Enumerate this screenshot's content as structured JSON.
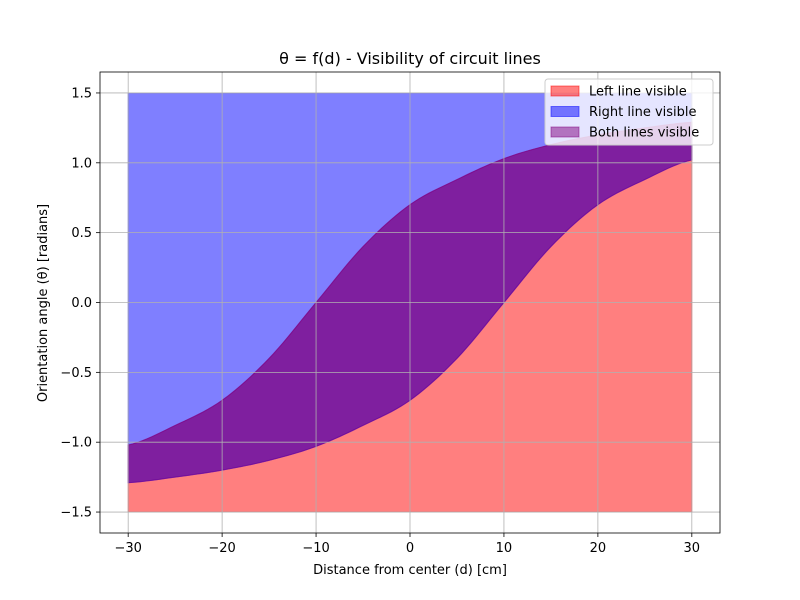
{
  "chart_data": {
    "type": "area",
    "title": "θ = f(d) - Visibility of circuit lines",
    "xlabel": "Distance from center (d) [cm]",
    "ylabel": "Orientation angle (θ) [radians]",
    "xlim": [
      -33,
      33
    ],
    "ylim": [
      -1.65,
      1.65
    ],
    "xticks": [
      -30,
      -20,
      -10,
      0,
      10,
      20,
      30
    ],
    "xtick_labels": [
      "−30",
      "−20",
      "−10",
      "0",
      "10",
      "20",
      "30"
    ],
    "yticks": [
      -1.5,
      -1.0,
      -0.5,
      0.0,
      0.5,
      1.0,
      1.5
    ],
    "ytick_labels": [
      "−1.5",
      "−1.0",
      "−0.5",
      "0.0",
      "0.5",
      "1.0",
      "1.5"
    ],
    "grid": true,
    "legend_position": "top-right",
    "x": [
      -30,
      -25,
      -20,
      -15,
      -10,
      -5,
      0,
      5,
      10,
      15,
      20,
      25,
      30
    ],
    "lower_boundary": [
      -1.29,
      -1.25,
      -1.2,
      -1.13,
      -1.03,
      -0.88,
      -0.7,
      -0.4,
      0.0,
      0.4,
      0.7,
      0.88,
      1.02
    ],
    "upper_boundary": [
      -1.02,
      -0.88,
      -0.7,
      -0.4,
      0.0,
      0.4,
      0.7,
      0.88,
      1.03,
      1.13,
      1.2,
      1.25,
      1.29
    ],
    "band_floor": -1.5,
    "band_ceiling": 1.5,
    "series": [
      {
        "name": "Left line visible",
        "region": "floor-to-upper",
        "color": "#ff0000",
        "alpha": 0.5
      },
      {
        "name": "Right line visible",
        "region": "lower-to-ceiling",
        "color": "#0000ff",
        "alpha": 0.5
      },
      {
        "name": "Both lines visible",
        "region": "lower-to-upper",
        "color": "#800080",
        "alpha": 0.5
      }
    ]
  }
}
